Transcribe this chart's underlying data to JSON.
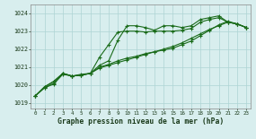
{
  "xlabel": "Graphe pression niveau de la mer (hPa)",
  "bg_color": "#d8eeee",
  "grid_color": "#aed4d4",
  "line_color": "#1a6b1a",
  "ylim": [
    1018.7,
    1024.5
  ],
  "yticks": [
    1019,
    1020,
    1021,
    1022,
    1023,
    1024
  ],
  "x_ticks": [
    0,
    1,
    2,
    3,
    4,
    5,
    6,
    7,
    8,
    9,
    10,
    11,
    12,
    13,
    14,
    15,
    16,
    17,
    18,
    19,
    20,
    21,
    22,
    23
  ],
  "series": [
    [
      1019.4,
      1019.85,
      1020.05,
      1020.6,
      1020.5,
      1020.6,
      1020.65,
      1021.1,
      1021.35,
      1022.5,
      1023.3,
      1023.3,
      1023.2,
      1023.05,
      1023.3,
      1023.3,
      1023.2,
      1023.3,
      1023.65,
      1023.75,
      1023.85,
      1023.5,
      1023.4,
      1023.2
    ],
    [
      1019.4,
      1019.85,
      1020.1,
      1020.65,
      1020.5,
      1020.55,
      1020.65,
      1021.55,
      1022.25,
      1022.95,
      1023.0,
      1023.0,
      1022.95,
      1023.0,
      1023.0,
      1023.0,
      1023.05,
      1023.15,
      1023.5,
      1023.65,
      1023.75,
      1023.5,
      1023.4,
      1023.2
    ],
    [
      1019.4,
      1019.9,
      1020.2,
      1020.65,
      1020.5,
      1020.55,
      1020.65,
      1021.0,
      1021.15,
      1021.35,
      1021.5,
      1021.6,
      1021.75,
      1021.85,
      1021.95,
      1022.05,
      1022.25,
      1022.45,
      1022.75,
      1023.05,
      1023.35,
      1023.55,
      1023.4,
      1023.2
    ],
    [
      1019.4,
      1019.9,
      1020.2,
      1020.65,
      1020.5,
      1020.55,
      1020.65,
      1020.95,
      1021.1,
      1021.25,
      1021.4,
      1021.55,
      1021.7,
      1021.85,
      1022.0,
      1022.15,
      1022.35,
      1022.6,
      1022.85,
      1023.1,
      1023.3,
      1023.5,
      1023.4,
      1023.2
    ]
  ],
  "series_styles": [
    {
      "lw": 0.8,
      "marker": "+",
      "ms": 3.0,
      "mew": 0.8,
      "ls": "-"
    },
    {
      "lw": 0.8,
      "marker": "+",
      "ms": 3.0,
      "mew": 0.8,
      "ls": "-"
    },
    {
      "lw": 0.8,
      "marker": "+",
      "ms": 3.0,
      "mew": 0.8,
      "ls": "-"
    },
    {
      "lw": 0.8,
      "marker": "+",
      "ms": 3.0,
      "mew": 0.8,
      "ls": "-"
    }
  ]
}
